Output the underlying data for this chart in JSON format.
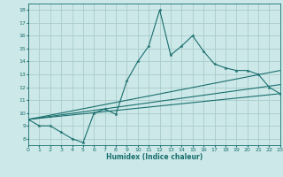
{
  "xlabel": "Humidex (Indice chaleur)",
  "bg_color": "#cce8e8",
  "grid_color": "#aacccc",
  "line_color": "#1a6e6e",
  "xlim": [
    0,
    23
  ],
  "ylim": [
    7.5,
    18.5
  ],
  "xticks": [
    0,
    1,
    2,
    3,
    4,
    5,
    6,
    7,
    8,
    9,
    10,
    11,
    12,
    13,
    14,
    15,
    16,
    17,
    18,
    19,
    20,
    21,
    22,
    23
  ],
  "yticks": [
    8,
    9,
    10,
    11,
    12,
    13,
    14,
    15,
    16,
    17,
    18
  ],
  "main_x": [
    0,
    1,
    2,
    3,
    4,
    5,
    6,
    7,
    8,
    9,
    10,
    11,
    12,
    13,
    14,
    15,
    16,
    17,
    18,
    19,
    20,
    21,
    22,
    23
  ],
  "main_y": [
    9.5,
    9.0,
    9.0,
    8.5,
    8.0,
    7.7,
    10.0,
    10.3,
    9.9,
    12.5,
    14.0,
    15.2,
    18.0,
    14.5,
    15.2,
    16.0,
    14.8,
    13.8,
    13.5,
    13.3,
    13.3,
    13.0,
    12.0,
    11.5
  ],
  "line1_x": [
    0,
    23
  ],
  "line1_y": [
    9.5,
    11.5
  ],
  "line2_x": [
    0,
    23
  ],
  "line2_y": [
    9.5,
    12.2
  ],
  "line3_x": [
    0,
    23
  ],
  "line3_y": [
    9.5,
    13.3
  ]
}
